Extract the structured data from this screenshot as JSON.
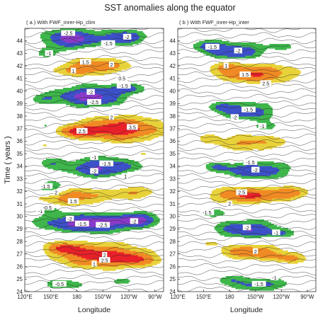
{
  "figure": {
    "title": "SST anomalies along the equator",
    "ylabel": "Time ( years )",
    "xlabel": "Longitude"
  },
  "palette": {
    "strong_warm": "#e8202a",
    "warm": "#f08a24",
    "weak_warm": "#e8d23a",
    "weak_cold": "#3eb64b",
    "cold": "#3c50c8",
    "strong_cold": "#8a3ac8",
    "contour": "#222222"
  },
  "chart_data": [
    {
      "type": "heatmap",
      "panel_label": "( a ) With FWF_inrer-Hp_clim",
      "x_ticks": [
        "120°E",
        "150°E",
        "180",
        "150°W",
        "120°W",
        "90°W"
      ],
      "y_ticks": [
        24,
        25,
        26,
        27,
        28,
        29,
        30,
        31,
        32,
        33,
        34,
        35,
        36,
        37,
        38,
        39,
        40,
        41,
        42,
        43,
        44
      ],
      "ylim": [
        24,
        45
      ],
      "xlabel": "Longitude",
      "contour_labels": [
        {
          "text": "-2.5",
          "lon": 170,
          "year": 44.6
        },
        {
          "text": "-2",
          "lon": 238,
          "year": 44.3
        },
        {
          "text": "-1.5",
          "lon": 216,
          "year": 43.8
        },
        {
          "text": "-1",
          "lon": 148,
          "year": 43.0
        },
        {
          "text": "1.5",
          "lon": 190,
          "year": 42.3
        },
        {
          "text": "2",
          "lon": 220,
          "year": 42.1
        },
        {
          "text": "1",
          "lon": 176,
          "year": 41.6
        },
        {
          "text": "0.5",
          "lon": 232,
          "year": 41.0
        },
        {
          "text": "-1.5",
          "lon": 234,
          "year": 40.4
        },
        {
          "text": "-2",
          "lon": 196,
          "year": 39.9
        },
        {
          "text": "-2.5",
          "lon": 200,
          "year": 39.1
        },
        {
          "text": "2",
          "lon": 220,
          "year": 37.9
        },
        {
          "text": "3.5",
          "lon": 244,
          "year": 37.1
        },
        {
          "text": "2.5",
          "lon": 186,
          "year": 36.8
        },
        {
          "text": "-1",
          "lon": 200,
          "year": 34.7
        },
        {
          "text": "-1.5",
          "lon": 214,
          "year": 34.2
        },
        {
          "text": "-2",
          "lon": 200,
          "year": 33.6
        },
        {
          "text": "1",
          "lon": 236,
          "year": 33.2
        },
        {
          "text": "-1.5",
          "lon": 144,
          "year": 32.4
        },
        {
          "text": "2",
          "lon": 156,
          "year": 31.9
        },
        {
          "text": "1.5",
          "lon": 176,
          "year": 31.2
        },
        {
          "text": "-1",
          "lon": 138,
          "year": 30.4
        },
        {
          "text": "-0.5",
          "lon": 146,
          "year": 30.7
        },
        {
          "text": "-2",
          "lon": 172,
          "year": 29.8
        },
        {
          "text": "-1.5",
          "lon": 186,
          "year": 29.4
        },
        {
          "text": "-2.5",
          "lon": 210,
          "year": 29.3
        },
        {
          "text": "-2",
          "lon": 246,
          "year": 29.6
        },
        {
          "text": "2",
          "lon": 212,
          "year": 26.9
        },
        {
          "text": "2.5",
          "lon": 212,
          "year": 26.5
        },
        {
          "text": "1",
          "lon": 200,
          "year": 26.2
        },
        {
          "text": "-0.5",
          "lon": 160,
          "year": 24.6
        }
      ]
    },
    {
      "type": "heatmap",
      "panel_label": "( b ) With FWF_inrer-Hp_inter",
      "x_ticks": [
        "120°E",
        "150°E",
        "180",
        "150°W",
        "120°W",
        "90°W"
      ],
      "y_ticks": [
        24,
        25,
        26,
        27,
        28,
        29,
        30,
        31,
        32,
        33,
        34,
        35,
        36,
        37,
        38,
        39,
        40,
        41,
        42,
        43,
        44
      ],
      "ylim": [
        24,
        45
      ],
      "xlabel": "Longitude",
      "contour_labels": [
        {
          "text": "-1.5",
          "lon": 160,
          "year": 43.5
        },
        {
          "text": "-2",
          "lon": 190,
          "year": 43.2
        },
        {
          "text": "1",
          "lon": 176,
          "year": 42.0
        },
        {
          "text": "1.5",
          "lon": 198,
          "year": 41.3
        },
        {
          "text": "2.5",
          "lon": 222,
          "year": 40.6
        },
        {
          "text": "-1.5",
          "lon": 202,
          "year": 38.5
        },
        {
          "text": "-2",
          "lon": 186,
          "year": 37.9
        },
        {
          "text": "-1",
          "lon": 218,
          "year": 37.2
        },
        {
          "text": "-1.5",
          "lon": 204,
          "year": 34.3
        },
        {
          "text": "-2",
          "lon": 210,
          "year": 33.7
        },
        {
          "text": "2.5",
          "lon": 194,
          "year": 31.9
        },
        {
          "text": "2",
          "lon": 180,
          "year": 31.0
        },
        {
          "text": "-1.5",
          "lon": 154,
          "year": 30.3
        },
        {
          "text": "-2",
          "lon": 200,
          "year": 29.1
        },
        {
          "text": "-1",
          "lon": 234,
          "year": 28.7
        },
        {
          "text": "2",
          "lon": 210,
          "year": 27.2
        },
        {
          "text": "-1",
          "lon": 232,
          "year": 25.1
        },
        {
          "text": "-1.5",
          "lon": 214,
          "year": 24.6
        }
      ]
    }
  ]
}
